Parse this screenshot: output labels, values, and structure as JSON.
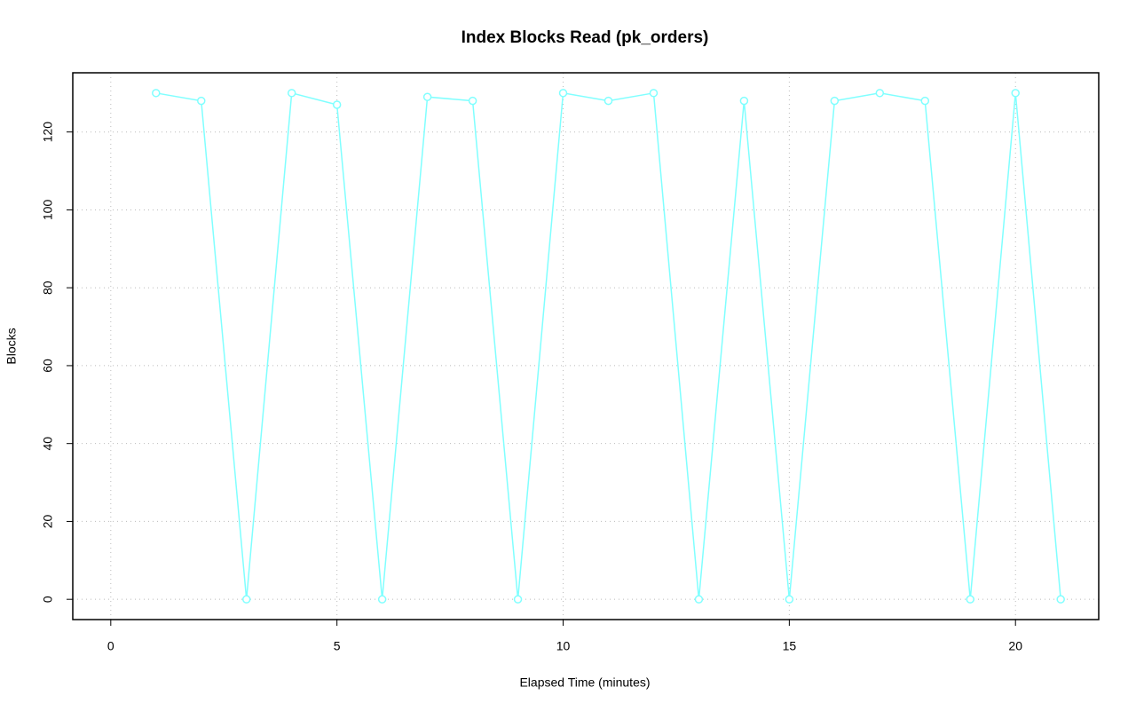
{
  "chart_data": {
    "type": "line",
    "title": "Index Blocks Read (pk_orders)",
    "x_label": "Elapsed Time (minutes)",
    "y_label": "Blocks",
    "x": [
      1,
      2,
      3,
      4,
      5,
      6,
      7,
      8,
      9,
      10,
      11,
      12,
      13,
      14,
      15,
      16,
      17,
      18,
      19,
      20,
      21
    ],
    "series": [
      {
        "color": "#80ffff",
        "values": [
          130,
          128,
          0,
          130,
          127,
          0,
          129,
          128,
          0,
          130,
          128,
          130,
          0,
          128,
          0,
          128,
          130,
          128,
          0,
          130,
          0
        ]
      }
    ],
    "xlim": [
      -0.84,
      21.84
    ],
    "xticks": [
      0,
      5,
      10,
      15,
      20
    ],
    "ylim": [
      -5.2,
      135.2
    ],
    "yticks": [
      0,
      20,
      40,
      60,
      80,
      100,
      120
    ],
    "grid": true
  }
}
